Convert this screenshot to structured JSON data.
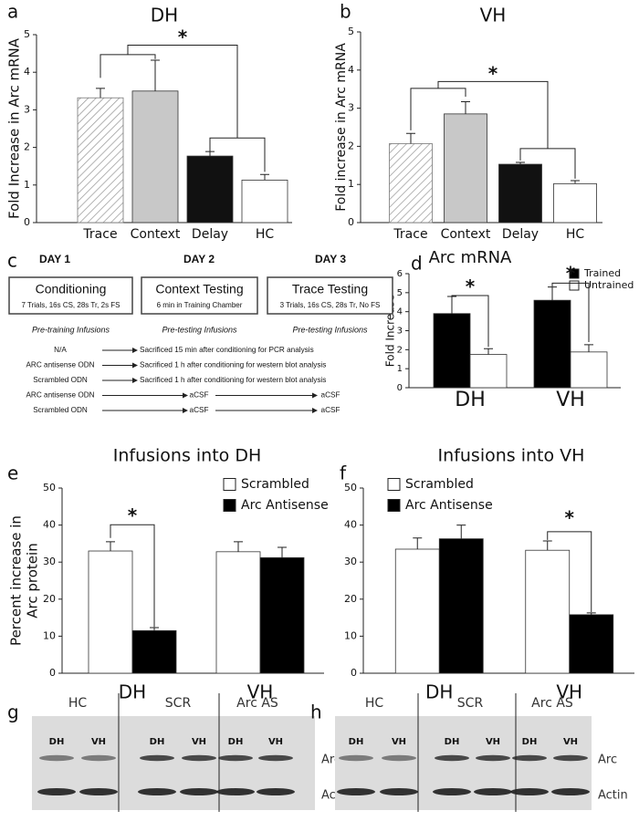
{
  "chart_data": [
    {
      "type": "bar",
      "panel_label": "a",
      "title": "DH",
      "ylabel": [
        "Fold Increase in Arc mRNA"
      ],
      "categories": [
        "Trace",
        "Context",
        "Delay",
        "HC"
      ],
      "values": [
        3.32,
        3.5,
        1.77,
        1.13
      ],
      "errors": [
        0.25,
        0.82,
        0.12,
        0.15
      ],
      "colors": [
        "#ffffff",
        "#c8c8c8",
        "#111111",
        "#ffffff"
      ],
      "hatched": [
        true,
        false,
        false,
        false
      ],
      "ylim": [
        0,
        5
      ],
      "yticks": [
        0,
        1,
        2,
        3,
        4,
        5
      ],
      "grid": false,
      "annotations": [
        "*"
      ]
    },
    {
      "type": "bar",
      "panel_label": "b",
      "title": "VH",
      "ylabel": [
        "Fold increase in Arc mRNA"
      ],
      "categories": [
        "Trace",
        "Context",
        "Delay",
        "HC"
      ],
      "values": [
        2.07,
        2.85,
        1.53,
        1.02
      ],
      "errors": [
        0.27,
        0.32,
        0.05,
        0.08
      ],
      "colors": [
        "#ffffff",
        "#c8c8c8",
        "#111111",
        "#ffffff"
      ],
      "hatched": [
        true,
        false,
        false,
        false
      ],
      "ylim": [
        0,
        5
      ],
      "yticks": [
        0,
        1,
        2,
        3,
        4,
        5
      ],
      "grid": false,
      "annotations": [
        "*"
      ]
    },
    {
      "type": "bar",
      "panel_label": "d",
      "title": "Arc mRNA",
      "ylabel": [
        "Fold Increase"
      ],
      "categories": [
        "DH",
        "VH"
      ],
      "series": [
        {
          "name": "Trained",
          "color": "#000000",
          "values": [
            3.9,
            4.6
          ],
          "errors": [
            0.9,
            0.7
          ]
        },
        {
          "name": "Untrained",
          "color": "#ffffff",
          "values": [
            1.75,
            1.88
          ],
          "errors": [
            0.3,
            0.38
          ]
        }
      ],
      "ylim": [
        0,
        6
      ],
      "yticks": [
        0,
        1,
        2,
        3,
        4,
        5,
        6
      ],
      "grid": false,
      "legend": "upper right",
      "annotations": [
        "*",
        "*"
      ]
    },
    {
      "type": "bar",
      "panel_label": "e",
      "title": "Infusions into DH",
      "ylabel": [
        "Percent increase in",
        "Arc protein"
      ],
      "categories": [
        "DH",
        "VH"
      ],
      "series": [
        {
          "name": "Scrambled",
          "color": "#ffffff",
          "values": [
            33,
            32.8
          ],
          "errors": [
            2.5,
            2.7
          ]
        },
        {
          "name": "Arc Antisense",
          "color": "#000000",
          "values": [
            11.5,
            31.2
          ],
          "errors": [
            0.8,
            2.8
          ]
        }
      ],
      "ylim": [
        0,
        50
      ],
      "yticks": [
        0,
        10,
        20,
        30,
        40,
        50
      ],
      "grid": false,
      "legend": "upper right",
      "annotations": [
        "*"
      ]
    },
    {
      "type": "bar",
      "panel_label": "f",
      "title": "Infusions into VH",
      "ylabel": [],
      "categories": [
        "DH",
        "VH"
      ],
      "series": [
        {
          "name": "Scrambled",
          "color": "#ffffff",
          "values": [
            33.5,
            33.2
          ],
          "errors": [
            3,
            2.5
          ]
        },
        {
          "name": "Arc Antisense",
          "color": "#000000",
          "values": [
            36.3,
            15.8
          ],
          "errors": [
            3.7,
            0.5
          ]
        }
      ],
      "ylim": [
        0,
        50
      ],
      "yticks": [
        0,
        10,
        20,
        30,
        40,
        50
      ],
      "grid": false,
      "legend": "upper right",
      "annotations": [
        "*"
      ]
    }
  ],
  "protocol": {
    "panel_label": "c",
    "days": [
      "DAY 1",
      "DAY 2",
      "DAY 3"
    ],
    "sessions": [
      {
        "title": "Conditioning",
        "detail": "7 Trials, 16s CS, 28s Tr, 2s FS"
      },
      {
        "title": "Context Testing",
        "detail": "6 min in Training Chamber"
      },
      {
        "title": "Trace Testing",
        "detail": "3 Trials, 16s CS, 28s Tr, No FS"
      }
    ],
    "infusion_headers": [
      "Pre-training Infusions",
      "Pre-testing Infusions",
      "Pre-testing Infusions"
    ],
    "rows": [
      [
        "N/A",
        "Sacrificed 15 min after conditioning for PCR analysis"
      ],
      [
        "ARC antisense ODN",
        "Sacrificed 1 h after conditioning for western blot analysis"
      ],
      [
        "Scrambled ODN",
        "Sacrificed 1 h after conditioning for western blot analysis"
      ],
      [
        "ARC antisense ODN",
        "aCSF",
        "aCSF"
      ],
      [
        "Scrambled ODN",
        "aCSF",
        "aCSF"
      ]
    ]
  },
  "blots": [
    {
      "panel_label": "g",
      "groups": [
        "HC",
        "SCR",
        "Arc AS"
      ],
      "lanes": [
        "DH",
        "VH",
        "DH",
        "VH",
        "DH",
        "VH"
      ],
      "rows": [
        "Arc",
        "Actin"
      ]
    },
    {
      "panel_label": "h",
      "groups": [
        "HC",
        "SCR",
        "Arc AS"
      ],
      "lanes": [
        "DH",
        "VH",
        "DH",
        "VH",
        "DH",
        "VH"
      ],
      "rows": [
        "Arc",
        "Actin"
      ]
    }
  ]
}
